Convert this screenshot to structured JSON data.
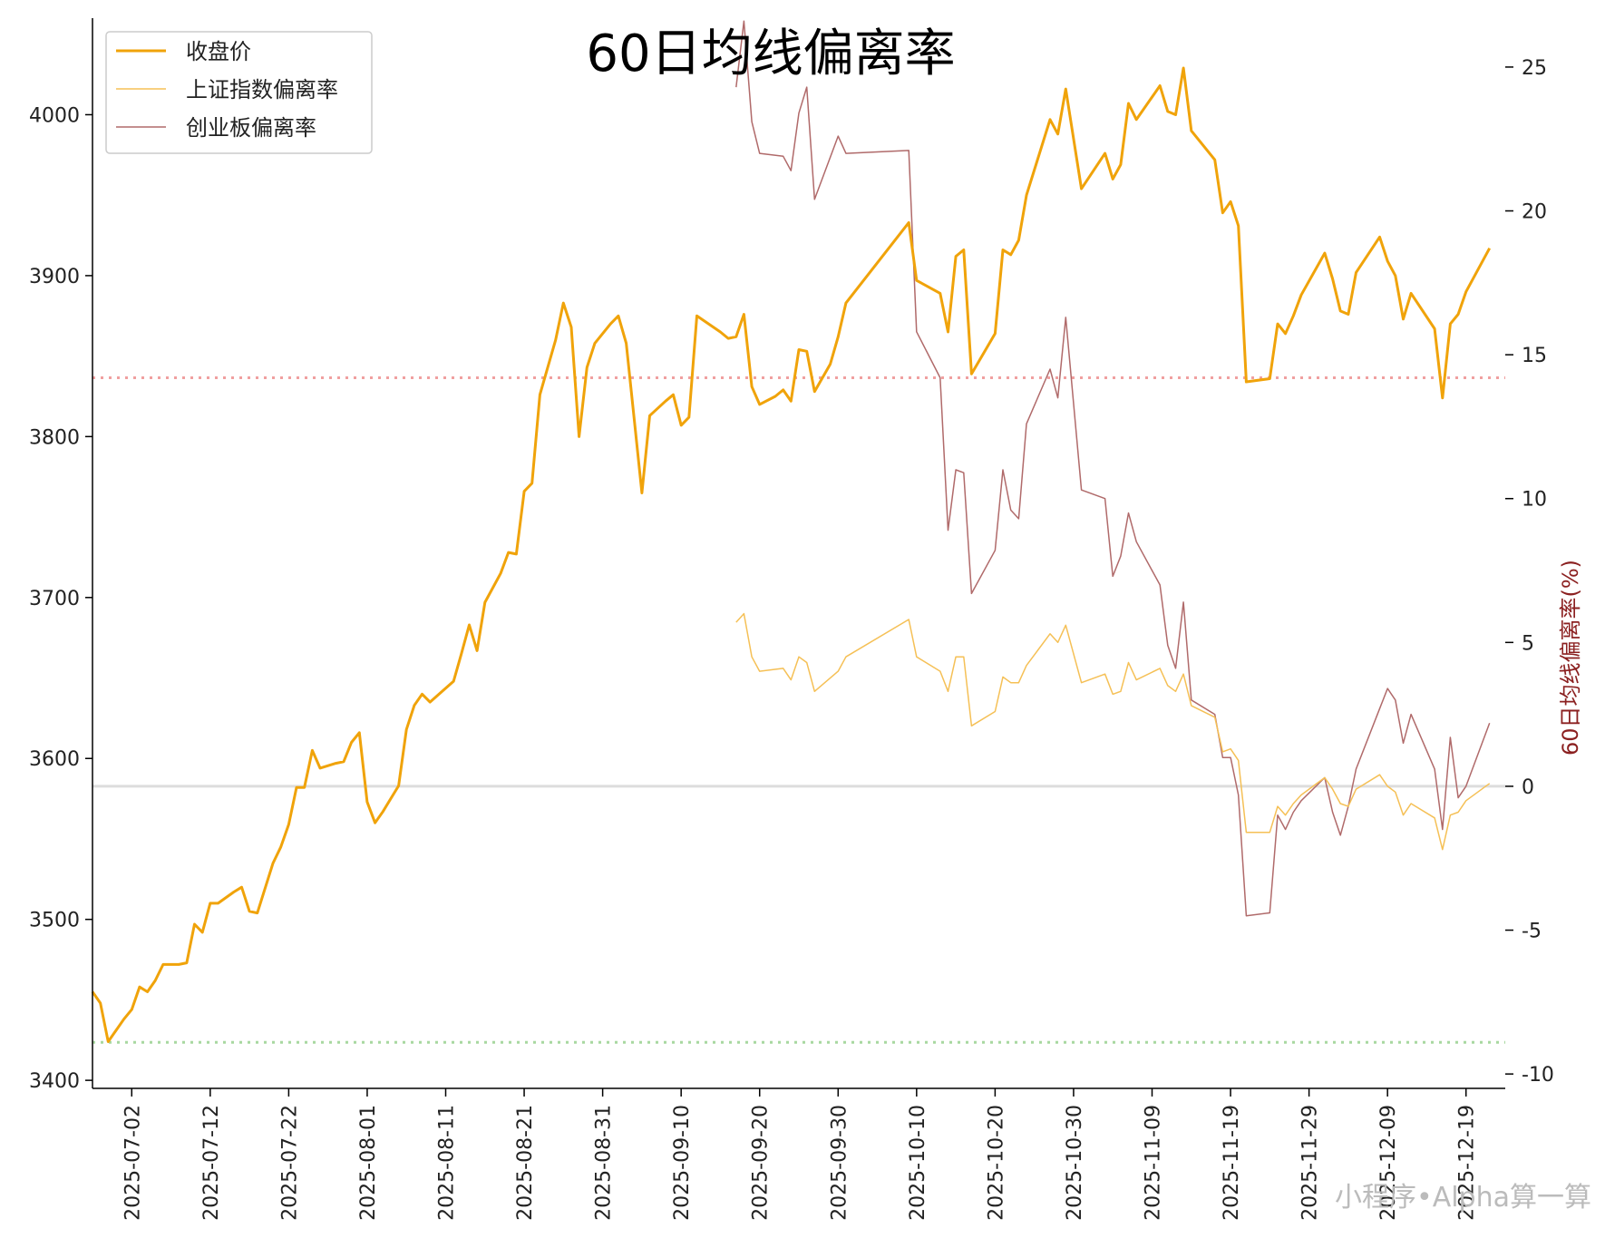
{
  "chart_data": {
    "type": "line",
    "title": "60日均线偏离率",
    "ylabel_right": "60日均线偏离率(%)",
    "watermark": "小程序•Alpha算一算",
    "legend_position": "top-left",
    "grid": false,
    "x_range": [
      "2025-06-27",
      "2025-12-24"
    ],
    "x_ticks": [
      "2025-07-02",
      "2025-07-12",
      "2025-07-22",
      "2025-08-01",
      "2025-08-11",
      "2025-08-21",
      "2025-08-31",
      "2025-09-10",
      "2025-09-20",
      "2025-09-30",
      "2025-10-10",
      "2025-10-20",
      "2025-10-30",
      "2025-11-09",
      "2025-11-19",
      "2025-11-29",
      "2025-12-09",
      "2025-12-19"
    ],
    "y_left_range": [
      3395,
      4060
    ],
    "y_left_ticks": [
      3400,
      3500,
      3600,
      3700,
      3800,
      3900,
      4000
    ],
    "y_right_range": [
      -10.5,
      26.7
    ],
    "y_right_ticks": [
      -10,
      -5,
      0,
      5,
      10,
      15,
      20,
      25
    ],
    "reference_lines": [
      {
        "axis": "right",
        "value": 0,
        "color": "#dddddd",
        "style": "solid"
      },
      {
        "axis": "right",
        "value": 14.2,
        "color": "#f0a0a0",
        "style": "dotted"
      },
      {
        "axis": "right",
        "value": -8.9,
        "color": "#a8d8a0",
        "style": "dotted"
      }
    ],
    "series": [
      {
        "name": "收盘价",
        "axis": "left",
        "color": "#f0a30a",
        "width": 3,
        "data": [
          [
            "2025-06-27",
            3455
          ],
          [
            "2025-06-28",
            3448
          ],
          [
            "2025-06-29",
            3424
          ],
          [
            "2025-07-01",
            3438
          ],
          [
            "2025-07-02",
            3444
          ],
          [
            "2025-07-03",
            3458
          ],
          [
            "2025-07-04",
            3455
          ],
          [
            "2025-07-05",
            3462
          ],
          [
            "2025-07-06",
            3472
          ],
          [
            "2025-07-08",
            3472
          ],
          [
            "2025-07-09",
            3473
          ],
          [
            "2025-07-10",
            3497
          ],
          [
            "2025-07-11",
            3492
          ],
          [
            "2025-07-12",
            3510
          ],
          [
            "2025-07-13",
            3510
          ],
          [
            "2025-07-15",
            3517
          ],
          [
            "2025-07-16",
            3520
          ],
          [
            "2025-07-17",
            3505
          ],
          [
            "2025-07-18",
            3504
          ],
          [
            "2025-07-20",
            3535
          ],
          [
            "2025-07-21",
            3545
          ],
          [
            "2025-07-22",
            3559
          ],
          [
            "2025-07-23",
            3582
          ],
          [
            "2025-07-24",
            3582
          ],
          [
            "2025-07-25",
            3605
          ],
          [
            "2025-07-26",
            3594
          ],
          [
            "2025-07-28",
            3597
          ],
          [
            "2025-07-29",
            3598
          ],
          [
            "2025-07-30",
            3610
          ],
          [
            "2025-07-31",
            3616
          ],
          [
            "2025-08-01",
            3573
          ],
          [
            "2025-08-02",
            3560
          ],
          [
            "2025-08-03",
            3567
          ],
          [
            "2025-08-04",
            3575
          ],
          [
            "2025-08-05",
            3583
          ],
          [
            "2025-08-06",
            3618
          ],
          [
            "2025-08-07",
            3633
          ],
          [
            "2025-08-08",
            3640
          ],
          [
            "2025-08-09",
            3635
          ],
          [
            "2025-08-12",
            3648
          ],
          [
            "2025-08-13",
            3665
          ],
          [
            "2025-08-14",
            3683
          ],
          [
            "2025-08-15",
            3667
          ],
          [
            "2025-08-16",
            3697
          ],
          [
            "2025-08-18",
            3715
          ],
          [
            "2025-08-19",
            3728
          ],
          [
            "2025-08-20",
            3727
          ],
          [
            "2025-08-21",
            3766
          ],
          [
            "2025-08-22",
            3771
          ],
          [
            "2025-08-23",
            3826
          ],
          [
            "2025-08-25",
            3860
          ],
          [
            "2025-08-26",
            3883
          ],
          [
            "2025-08-27",
            3868
          ],
          [
            "2025-08-28",
            3800
          ],
          [
            "2025-08-29",
            3843
          ],
          [
            "2025-08-30",
            3858
          ],
          [
            "2025-09-01",
            3870
          ],
          [
            "2025-09-02",
            3875
          ],
          [
            "2025-09-03",
            3858
          ],
          [
            "2025-09-04",
            3812
          ],
          [
            "2025-09-05",
            3765
          ],
          [
            "2025-09-06",
            3813
          ],
          [
            "2025-09-08",
            3822
          ],
          [
            "2025-09-09",
            3826
          ],
          [
            "2025-09-10",
            3807
          ],
          [
            "2025-09-11",
            3812
          ],
          [
            "2025-09-12",
            3875
          ],
          [
            "2025-09-15",
            3865
          ],
          [
            "2025-09-16",
            3861
          ],
          [
            "2025-09-17",
            3862
          ],
          [
            "2025-09-18",
            3876
          ],
          [
            "2025-09-19",
            3831
          ],
          [
            "2025-09-20",
            3820
          ],
          [
            "2025-09-22",
            3825
          ],
          [
            "2025-09-23",
            3829
          ],
          [
            "2025-09-24",
            3822
          ],
          [
            "2025-09-25",
            3854
          ],
          [
            "2025-09-26",
            3853
          ],
          [
            "2025-09-27",
            3828
          ],
          [
            "2025-09-29",
            3845
          ],
          [
            "2025-09-30",
            3862
          ],
          [
            "2025-10-01",
            3883
          ],
          [
            "2025-10-09",
            3933
          ],
          [
            "2025-10-10",
            3897
          ],
          [
            "2025-10-13",
            3889
          ],
          [
            "2025-10-14",
            3865
          ],
          [
            "2025-10-15",
            3912
          ],
          [
            "2025-10-16",
            3916
          ],
          [
            "2025-10-17",
            3839
          ],
          [
            "2025-10-20",
            3864
          ],
          [
            "2025-10-21",
            3916
          ],
          [
            "2025-10-22",
            3913
          ],
          [
            "2025-10-23",
            3922
          ],
          [
            "2025-10-24",
            3950
          ],
          [
            "2025-10-27",
            3997
          ],
          [
            "2025-10-28",
            3988
          ],
          [
            "2025-10-29",
            4016
          ],
          [
            "2025-10-31",
            3954
          ],
          [
            "2025-11-03",
            3976
          ],
          [
            "2025-11-04",
            3960
          ],
          [
            "2025-11-05",
            3969
          ],
          [
            "2025-11-06",
            4007
          ],
          [
            "2025-11-07",
            3997
          ],
          [
            "2025-11-10",
            4018
          ],
          [
            "2025-11-11",
            4002
          ],
          [
            "2025-11-12",
            4000
          ],
          [
            "2025-11-13",
            4029
          ],
          [
            "2025-11-14",
            3990
          ],
          [
            "2025-11-17",
            3972
          ],
          [
            "2025-11-18",
            3939
          ],
          [
            "2025-11-19",
            3946
          ],
          [
            "2025-11-20",
            3931
          ],
          [
            "2025-11-21",
            3834
          ],
          [
            "2025-11-24",
            3836
          ],
          [
            "2025-11-25",
            3870
          ],
          [
            "2025-11-26",
            3864
          ],
          [
            "2025-11-27",
            3875
          ],
          [
            "2025-11-28",
            3888
          ],
          [
            "2025-12-01",
            3914
          ],
          [
            "2025-12-02",
            3898
          ],
          [
            "2025-12-03",
            3878
          ],
          [
            "2025-12-04",
            3876
          ],
          [
            "2025-12-05",
            3902
          ],
          [
            "2025-12-08",
            3924
          ],
          [
            "2025-12-09",
            3909
          ],
          [
            "2025-12-10",
            3900
          ],
          [
            "2025-12-11",
            3873
          ],
          [
            "2025-12-12",
            3889
          ],
          [
            "2025-12-15",
            3867
          ],
          [
            "2025-12-16",
            3824
          ],
          [
            "2025-12-17",
            3870
          ],
          [
            "2025-12-18",
            3876
          ],
          [
            "2025-12-19",
            3890
          ],
          [
            "2025-12-22",
            3917
          ]
        ]
      },
      {
        "name": "上证指数偏离率",
        "axis": "right",
        "color": "#f5c056",
        "width": 1.5,
        "data": [
          [
            "2025-09-17",
            5.7
          ],
          [
            "2025-09-18",
            6.0
          ],
          [
            "2025-09-19",
            4.5
          ],
          [
            "2025-09-20",
            4.0
          ],
          [
            "2025-09-23",
            4.1
          ],
          [
            "2025-09-24",
            3.7
          ],
          [
            "2025-09-25",
            4.5
          ],
          [
            "2025-09-26",
            4.3
          ],
          [
            "2025-09-27",
            3.3
          ],
          [
            "2025-09-30",
            4.0
          ],
          [
            "2025-10-01",
            4.5
          ],
          [
            "2025-10-09",
            5.8
          ],
          [
            "2025-10-10",
            4.5
          ],
          [
            "2025-10-13",
            4.0
          ],
          [
            "2025-10-14",
            3.3
          ],
          [
            "2025-10-15",
            4.5
          ],
          [
            "2025-10-16",
            4.5
          ],
          [
            "2025-10-17",
            2.1
          ],
          [
            "2025-10-20",
            2.6
          ],
          [
            "2025-10-21",
            3.8
          ],
          [
            "2025-10-22",
            3.6
          ],
          [
            "2025-10-23",
            3.6
          ],
          [
            "2025-10-24",
            4.2
          ],
          [
            "2025-10-27",
            5.3
          ],
          [
            "2025-10-28",
            5.0
          ],
          [
            "2025-10-29",
            5.6
          ],
          [
            "2025-10-31",
            3.6
          ],
          [
            "2025-11-03",
            3.9
          ],
          [
            "2025-11-04",
            3.2
          ],
          [
            "2025-11-05",
            3.3
          ],
          [
            "2025-11-06",
            4.3
          ],
          [
            "2025-11-07",
            3.7
          ],
          [
            "2025-11-10",
            4.1
          ],
          [
            "2025-11-11",
            3.5
          ],
          [
            "2025-11-12",
            3.3
          ],
          [
            "2025-11-13",
            3.9
          ],
          [
            "2025-11-14",
            2.8
          ],
          [
            "2025-11-17",
            2.4
          ],
          [
            "2025-11-18",
            1.2
          ],
          [
            "2025-11-19",
            1.3
          ],
          [
            "2025-11-20",
            0.9
          ],
          [
            "2025-11-21",
            -1.6
          ],
          [
            "2025-11-24",
            -1.6
          ],
          [
            "2025-11-25",
            -0.7
          ],
          [
            "2025-11-26",
            -1.0
          ],
          [
            "2025-11-27",
            -0.6
          ],
          [
            "2025-11-28",
            -0.3
          ],
          [
            "2025-12-01",
            0.3
          ],
          [
            "2025-12-02",
            -0.1
          ],
          [
            "2025-12-03",
            -0.6
          ],
          [
            "2025-12-04",
            -0.7
          ],
          [
            "2025-12-05",
            -0.1
          ],
          [
            "2025-12-08",
            0.4
          ],
          [
            "2025-12-09",
            0.0
          ],
          [
            "2025-12-10",
            -0.2
          ],
          [
            "2025-12-11",
            -1.0
          ],
          [
            "2025-12-12",
            -0.6
          ],
          [
            "2025-12-15",
            -1.1
          ],
          [
            "2025-12-16",
            -2.2
          ],
          [
            "2025-12-17",
            -1.0
          ],
          [
            "2025-12-18",
            -0.9
          ],
          [
            "2025-12-19",
            -0.5
          ],
          [
            "2025-12-22",
            0.1
          ]
        ]
      },
      {
        "name": "创业板偏离率",
        "axis": "right",
        "color": "#b06a6a",
        "width": 1.5,
        "data": [
          [
            "2025-09-17",
            24.3
          ],
          [
            "2025-09-18",
            26.6
          ],
          [
            "2025-09-19",
            23.1
          ],
          [
            "2025-09-20",
            22.0
          ],
          [
            "2025-09-23",
            21.9
          ],
          [
            "2025-09-24",
            21.4
          ],
          [
            "2025-09-25",
            23.4
          ],
          [
            "2025-09-26",
            24.3
          ],
          [
            "2025-09-27",
            20.4
          ],
          [
            "2025-09-30",
            22.6
          ],
          [
            "2025-10-01",
            22.0
          ],
          [
            "2025-10-09",
            22.1
          ],
          [
            "2025-10-10",
            15.8
          ],
          [
            "2025-10-13",
            14.2
          ],
          [
            "2025-10-14",
            8.9
          ],
          [
            "2025-10-15",
            11.0
          ],
          [
            "2025-10-16",
            10.9
          ],
          [
            "2025-10-17",
            6.7
          ],
          [
            "2025-10-20",
            8.2
          ],
          [
            "2025-10-21",
            11.0
          ],
          [
            "2025-10-22",
            9.6
          ],
          [
            "2025-10-23",
            9.3
          ],
          [
            "2025-10-24",
            12.6
          ],
          [
            "2025-10-27",
            14.5
          ],
          [
            "2025-10-28",
            13.5
          ],
          [
            "2025-10-29",
            16.3
          ],
          [
            "2025-10-31",
            10.3
          ],
          [
            "2025-11-03",
            10.0
          ],
          [
            "2025-11-04",
            7.3
          ],
          [
            "2025-11-05",
            8.0
          ],
          [
            "2025-11-06",
            9.5
          ],
          [
            "2025-11-07",
            8.5
          ],
          [
            "2025-11-10",
            7.0
          ],
          [
            "2025-11-11",
            4.9
          ],
          [
            "2025-11-12",
            4.1
          ],
          [
            "2025-11-13",
            6.4
          ],
          [
            "2025-11-14",
            3.0
          ],
          [
            "2025-11-17",
            2.5
          ],
          [
            "2025-11-18",
            1.0
          ],
          [
            "2025-11-19",
            1.0
          ],
          [
            "2025-11-20",
            -0.3
          ],
          [
            "2025-11-21",
            -4.5
          ],
          [
            "2025-11-24",
            -4.4
          ],
          [
            "2025-11-25",
            -1.0
          ],
          [
            "2025-11-26",
            -1.5
          ],
          [
            "2025-11-27",
            -0.9
          ],
          [
            "2025-11-28",
            -0.5
          ],
          [
            "2025-12-01",
            0.3
          ],
          [
            "2025-12-02",
            -0.9
          ],
          [
            "2025-12-03",
            -1.7
          ],
          [
            "2025-12-04",
            -0.7
          ],
          [
            "2025-12-05",
            0.6
          ],
          [
            "2025-12-08",
            2.7
          ],
          [
            "2025-12-09",
            3.4
          ],
          [
            "2025-12-10",
            3.0
          ],
          [
            "2025-12-11",
            1.5
          ],
          [
            "2025-12-12",
            2.5
          ],
          [
            "2025-12-15",
            0.6
          ],
          [
            "2025-12-16",
            -1.5
          ],
          [
            "2025-12-17",
            1.7
          ],
          [
            "2025-12-18",
            -0.4
          ],
          [
            "2025-12-19",
            0.0
          ],
          [
            "2025-12-22",
            2.2
          ]
        ]
      }
    ]
  }
}
